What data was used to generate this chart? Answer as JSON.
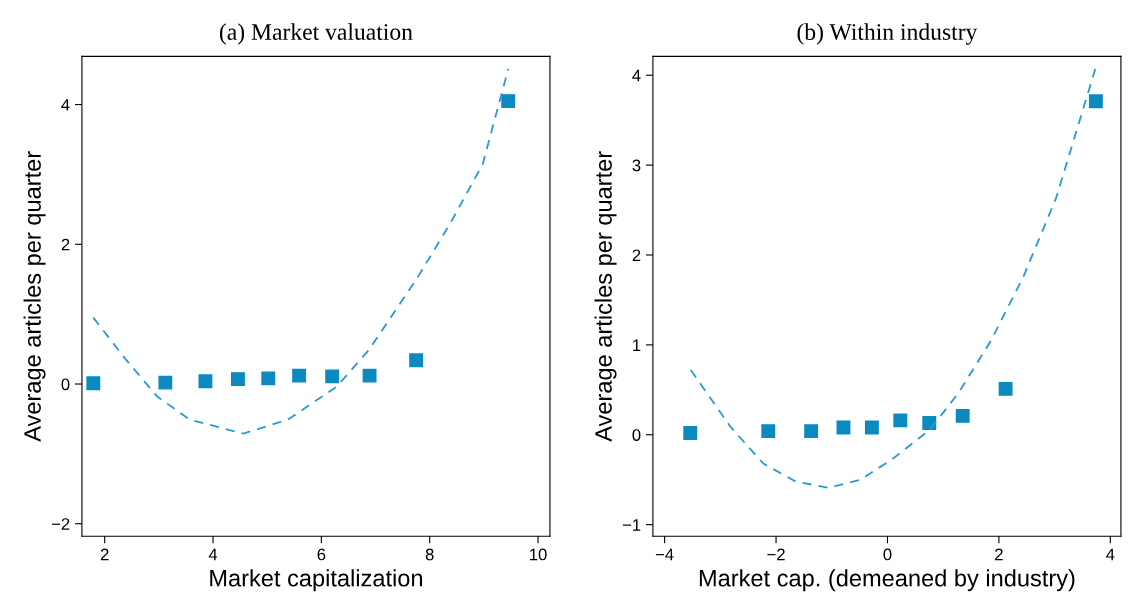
{
  "chart_data": [
    {
      "type": "scatter",
      "title": "(a) Market valuation",
      "xlabel": "Market capitalization",
      "ylabel": "Average articles per quarter",
      "xlim": [
        1.58,
        10.22
      ],
      "ylim": [
        -2.18,
        4.69
      ],
      "xticks": [
        2,
        4,
        6,
        8,
        10
      ],
      "yticks": [
        {
          "value": -2,
          "label": "−2"
        },
        0,
        2,
        4
      ],
      "grid": false,
      "legend": false,
      "series": [
        {
          "marker": "square",
          "color": "#0a8abf",
          "x": [
            1.79,
            3.12,
            3.86,
            4.46,
            5.02,
            5.59,
            6.2,
            6.89,
            7.75,
            9.45
          ],
          "values": [
            0.01,
            0.02,
            0.04,
            0.07,
            0.08,
            0.12,
            0.11,
            0.12,
            0.34,
            4.05
          ]
        },
        {
          "type": "line",
          "line_style": "dashed",
          "color": "#2a9ad0",
          "x": [
            1.79,
            2.37,
            2.97,
            3.57,
            4.56,
            5.38,
            6.28,
            6.88,
            7.78,
            8.38,
            8.98,
            9.45
          ],
          "values": [
            0.95,
            0.37,
            -0.18,
            -0.51,
            -0.71,
            -0.51,
            -0.04,
            0.49,
            1.53,
            2.3,
            3.15,
            4.51
          ]
        }
      ]
    },
    {
      "type": "scatter",
      "title": "(b) Within industry",
      "xlabel": "Market cap. (demeaned by industry)",
      "ylabel": "Average articles per quarter",
      "xlim": [
        -4.21,
        4.19
      ],
      "ylim": [
        -1.13,
        4.21
      ],
      "xticks": [
        {
          "value": -4,
          "label": "−4"
        },
        {
          "value": -2,
          "label": "−2"
        },
        0,
        2,
        4
      ],
      "yticks": [
        {
          "value": -1,
          "label": "−1"
        },
        0,
        1,
        2,
        3,
        4
      ],
      "grid": false,
      "legend": false,
      "series": [
        {
          "marker": "square",
          "color": "#0a8abf",
          "x": [
            -3.54,
            -2.14,
            -1.37,
            -0.79,
            -0.28,
            0.23,
            0.75,
            1.35,
            2.12,
            3.74
          ],
          "values": [
            0.02,
            0.04,
            0.04,
            0.08,
            0.08,
            0.16,
            0.13,
            0.21,
            0.51,
            3.71
          ]
        },
        {
          "type": "line",
          "line_style": "dashed",
          "color": "#2a9ad0",
          "x": [
            -3.53,
            -2.82,
            -2.23,
            -1.65,
            -1.06,
            -0.48,
            0.11,
            0.75,
            1.27,
            1.86,
            2.44,
            3.03,
            3.73
          ],
          "values": [
            0.72,
            0.09,
            -0.32,
            -0.52,
            -0.59,
            -0.5,
            -0.26,
            0.05,
            0.46,
            1.05,
            1.76,
            2.64,
            4.07
          ]
        }
      ]
    }
  ]
}
